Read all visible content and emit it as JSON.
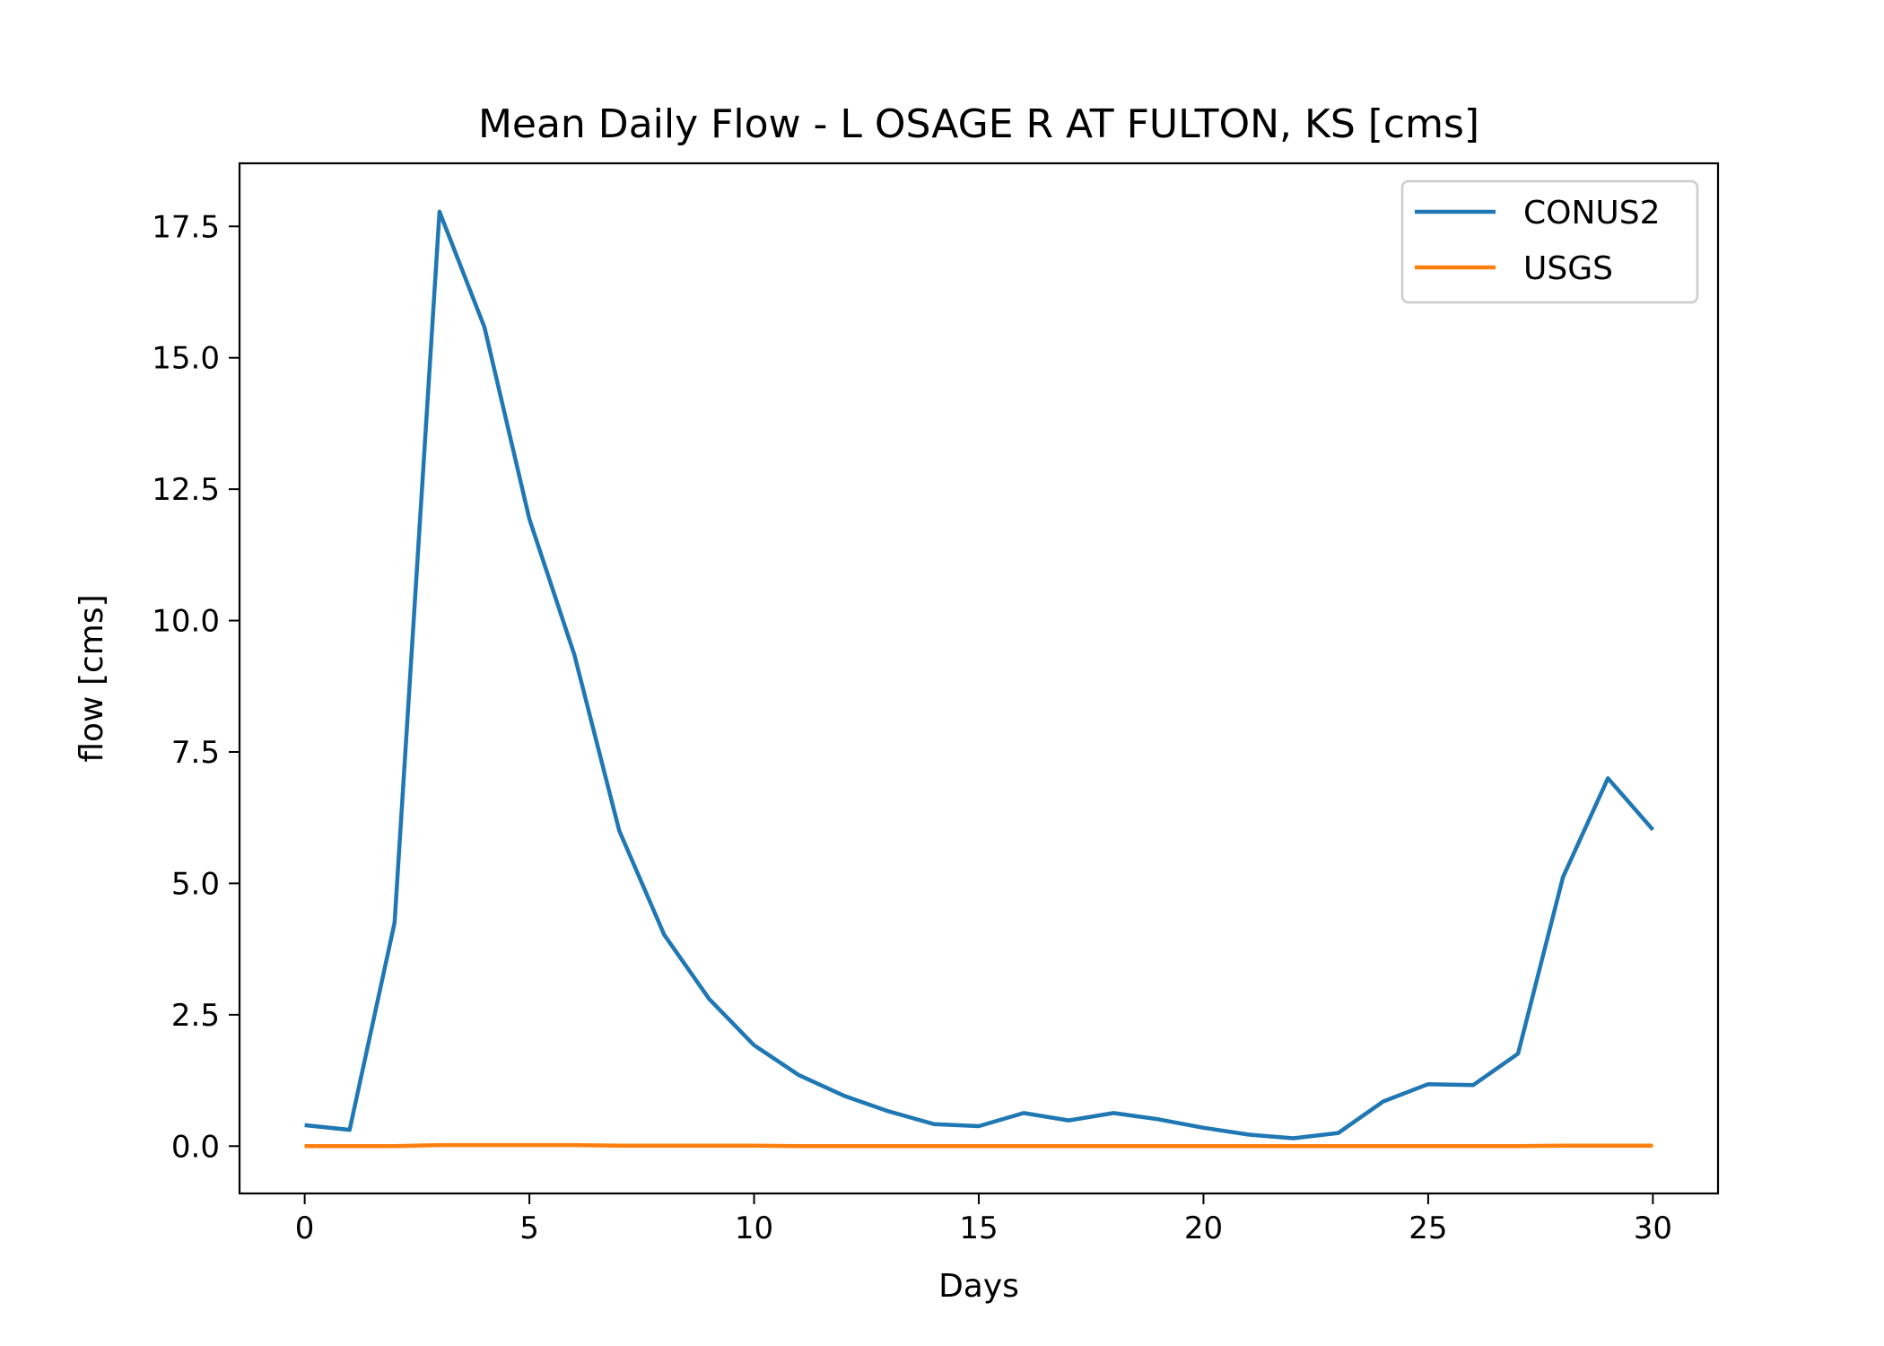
{
  "chart_data": {
    "type": "line",
    "title": "Mean Daily Flow - L OSAGE R AT FULTON, KS [cms]",
    "xlabel": "Days",
    "ylabel": "flow [cms]",
    "xlim": [
      -1.45,
      31.45
    ],
    "ylim": [
      -0.9,
      18.7
    ],
    "xticks": [
      0,
      5,
      10,
      15,
      20,
      25,
      30
    ],
    "xtick_labels": [
      "0",
      "5",
      "10",
      "15",
      "20",
      "25",
      "30"
    ],
    "yticks": [
      0,
      2.5,
      5,
      7.5,
      10,
      12.5,
      15,
      17.5
    ],
    "ytick_labels": [
      "0.0",
      "2.5",
      "5.0",
      "7.5",
      "10.0",
      "12.5",
      "15.0",
      "17.5"
    ],
    "grid": false,
    "legend_position": "top-right",
    "x": [
      0,
      1,
      2,
      3,
      4,
      5,
      6,
      7,
      8,
      9,
      10,
      11,
      12,
      13,
      14,
      15,
      16,
      17,
      18,
      19,
      20,
      21,
      22,
      23,
      24,
      25,
      26,
      27,
      28,
      29,
      30
    ],
    "series": [
      {
        "name": "CONUS2",
        "color": "#1f77b4",
        "values": [
          0.4,
          0.31,
          4.25,
          17.78,
          15.58,
          11.93,
          9.35,
          6.0,
          4.02,
          2.8,
          1.92,
          1.35,
          0.96,
          0.66,
          0.42,
          0.38,
          0.63,
          0.49,
          0.63,
          0.51,
          0.35,
          0.22,
          0.15,
          0.25,
          0.85,
          1.18,
          1.16,
          1.76,
          5.12,
          7.0,
          6.02
        ]
      },
      {
        "name": "USGS",
        "color": "#ff7f0e",
        "values": [
          0.0,
          0.0,
          0.0,
          0.02,
          0.02,
          0.02,
          0.02,
          0.01,
          0.01,
          0.01,
          0.01,
          0.0,
          0.0,
          0.0,
          0.0,
          0.0,
          0.0,
          0.0,
          0.0,
          0.0,
          0.0,
          0.0,
          0.0,
          0.0,
          0.0,
          0.0,
          0.0,
          0.0,
          0.01,
          0.01,
          0.01
        ]
      }
    ]
  }
}
